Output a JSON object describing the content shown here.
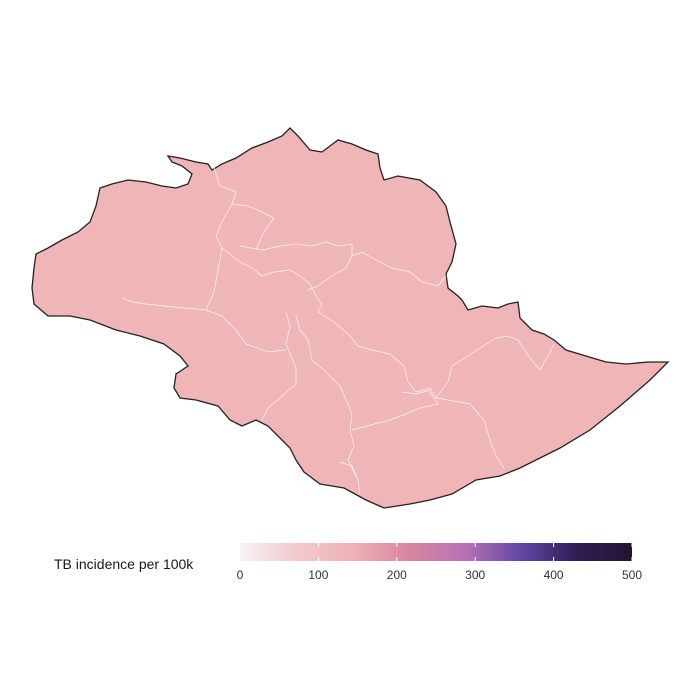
{
  "legend": {
    "title": "TB incidence per 100k",
    "min": 0,
    "max": 500,
    "ticks": [
      0,
      100,
      200,
      300,
      400,
      500
    ],
    "colors": [
      "#f7f3f7",
      "#f2c9cc",
      "#efb3b7",
      "#d9869f",
      "#b873b5",
      "#6447a6",
      "#2e1f57",
      "#241330"
    ]
  },
  "map": {
    "fill": "#efb5b7",
    "outline": "#222222",
    "district_border": "#ffffff",
    "district_value": 170
  }
}
